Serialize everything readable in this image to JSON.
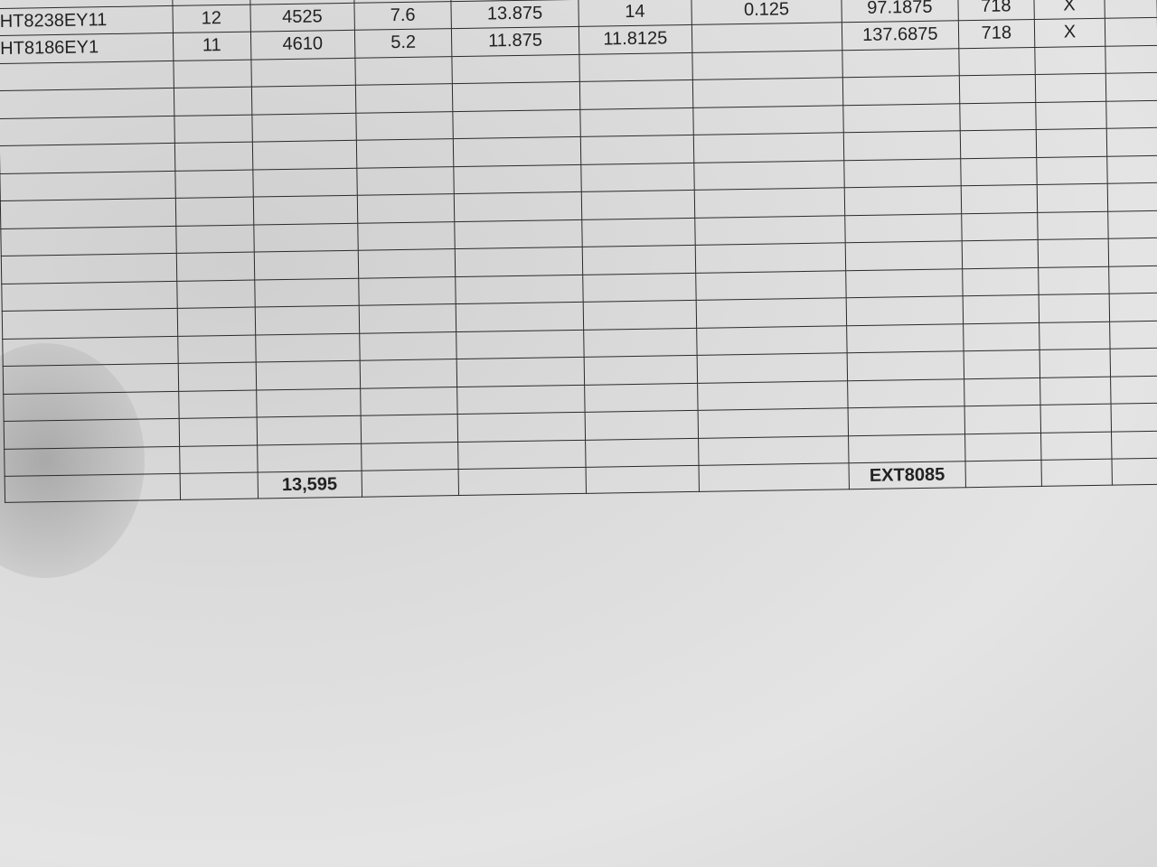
{
  "table": {
    "rows": [
      [
        "HT8238EY11",
        "12",
        "4525",
        "7.6",
        "13.875",
        "14",
        "0.125",
        "97.1875",
        "718",
        "X",
        ""
      ],
      [
        "HT8186EY1",
        "11",
        "4610",
        "5.2",
        "11.875",
        "11.8125",
        "",
        "137.6875",
        "718",
        "X",
        ""
      ]
    ],
    "empty_rows": 15,
    "totals": {
      "quantity_total": "13,595",
      "code": "EXT8085"
    }
  }
}
